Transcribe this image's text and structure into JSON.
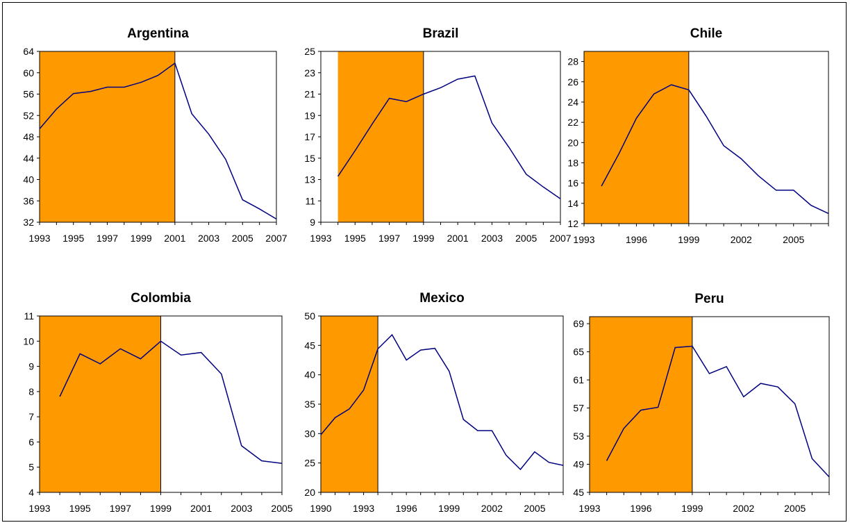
{
  "shade_color": "#FF9900",
  "line_color": "#000080",
  "chart_data": [
    {
      "type": "line",
      "title": "Argentina",
      "ylim": [
        32,
        64
      ],
      "yticks": [
        32,
        36,
        40,
        44,
        48,
        52,
        56,
        60,
        64
      ],
      "xlim": [
        1993,
        2007
      ],
      "xticks": [
        1993,
        1995,
        1997,
        1999,
        2001,
        2003,
        2005,
        2007
      ],
      "shade": [
        1993,
        2001
      ],
      "x": [
        1993,
        1994,
        1995,
        1996,
        1997,
        1998,
        1999,
        2000,
        2001,
        2002,
        2003,
        2004,
        2005,
        2006,
        2007
      ],
      "values": [
        49.5,
        53.2,
        56.1,
        56.5,
        57.3,
        57.3,
        58.2,
        59.5,
        61.8,
        52.3,
        48.5,
        43.8,
        36.2,
        34.5,
        32.6
      ]
    },
    {
      "type": "line",
      "title": "Brazil",
      "ylim": [
        9,
        25
      ],
      "yticks": [
        9,
        11,
        13,
        15,
        17,
        19,
        21,
        23,
        25
      ],
      "xlim": [
        1993,
        2007
      ],
      "xticks": [
        1993,
        1995,
        1997,
        1999,
        2001,
        2003,
        2005,
        2007
      ],
      "shade": [
        1994,
        1999
      ],
      "x": [
        1994,
        1995,
        1996,
        1997,
        1998,
        1999,
        2000,
        2001,
        2002,
        2003,
        2004,
        2005,
        2006,
        2007
      ],
      "values": [
        13.3,
        15.7,
        18.2,
        20.6,
        20.3,
        21.0,
        21.6,
        22.4,
        22.7,
        18.3,
        16.0,
        13.5,
        12.3,
        11.2
      ]
    },
    {
      "type": "line",
      "title": "Chile",
      "ylim": [
        12,
        29
      ],
      "yticks": [
        12,
        14,
        16,
        18,
        20,
        22,
        24,
        26,
        28
      ],
      "xlim": [
        1993,
        2007
      ],
      "xticks": [
        1993,
        1996,
        1999,
        2002,
        2005
      ],
      "shade": [
        1993,
        1999
      ],
      "x": [
        1994,
        1995,
        1996,
        1997,
        1998,
        1999,
        2000,
        2001,
        2002,
        2003,
        2004,
        2005,
        2006,
        2007
      ],
      "values": [
        15.7,
        18.9,
        22.4,
        24.8,
        25.7,
        25.2,
        22.6,
        19.7,
        18.4,
        16.7,
        15.3,
        15.3,
        13.8,
        13.0
      ]
    },
    {
      "type": "line",
      "title": "Colombia",
      "ylim": [
        4,
        11
      ],
      "yticks": [
        4,
        5,
        6,
        7,
        8,
        9,
        10,
        11
      ],
      "xlim": [
        1993,
        2005
      ],
      "xticks": [
        1993,
        1995,
        1997,
        1999,
        2001,
        2003,
        2005
      ],
      "shade": [
        1993,
        1999
      ],
      "x": [
        1994,
        1995,
        1996,
        1997,
        1998,
        1999,
        2000,
        2001,
        2002,
        2003,
        2004,
        2005
      ],
      "values": [
        7.8,
        9.5,
        9.1,
        9.7,
        9.3,
        10.0,
        9.45,
        9.55,
        8.7,
        5.85,
        5.25,
        5.15
      ]
    },
    {
      "type": "line",
      "title": "Mexico",
      "ylim": [
        20,
        50
      ],
      "yticks": [
        20,
        25,
        30,
        35,
        40,
        45,
        50
      ],
      "xlim": [
        1990,
        2007
      ],
      "xticks": [
        1990,
        1993,
        1996,
        1999,
        2002,
        2005
      ],
      "shade": [
        1990,
        1994
      ],
      "x": [
        1990,
        1991,
        1992,
        1993,
        1994,
        1995,
        1996,
        1997,
        1998,
        1999,
        2000,
        2001,
        2002,
        2003,
        2004,
        2005,
        2006,
        2007
      ],
      "values": [
        29.8,
        32.7,
        34.2,
        37.4,
        44.4,
        46.8,
        42.5,
        44.2,
        44.5,
        40.6,
        32.4,
        30.5,
        30.5,
        26.3,
        23.9,
        26.9,
        25.1,
        24.6
      ]
    },
    {
      "type": "line",
      "title": "Peru",
      "ylim": [
        45,
        70
      ],
      "yticks": [
        45,
        49,
        53,
        57,
        61,
        65,
        69
      ],
      "xlim": [
        1993,
        2007
      ],
      "xticks": [
        1993,
        1996,
        1999,
        2002,
        2005
      ],
      "shade": [
        1993,
        1999
      ],
      "x": [
        1994,
        1995,
        1996,
        1997,
        1998,
        1999,
        2000,
        2001,
        2002,
        2003,
        2004,
        2005,
        2006,
        2007
      ],
      "values": [
        49.5,
        54.1,
        56.7,
        57.1,
        65.6,
        65.8,
        61.9,
        62.9,
        58.6,
        60.5,
        60.0,
        57.6,
        49.8,
        47.2
      ]
    }
  ]
}
